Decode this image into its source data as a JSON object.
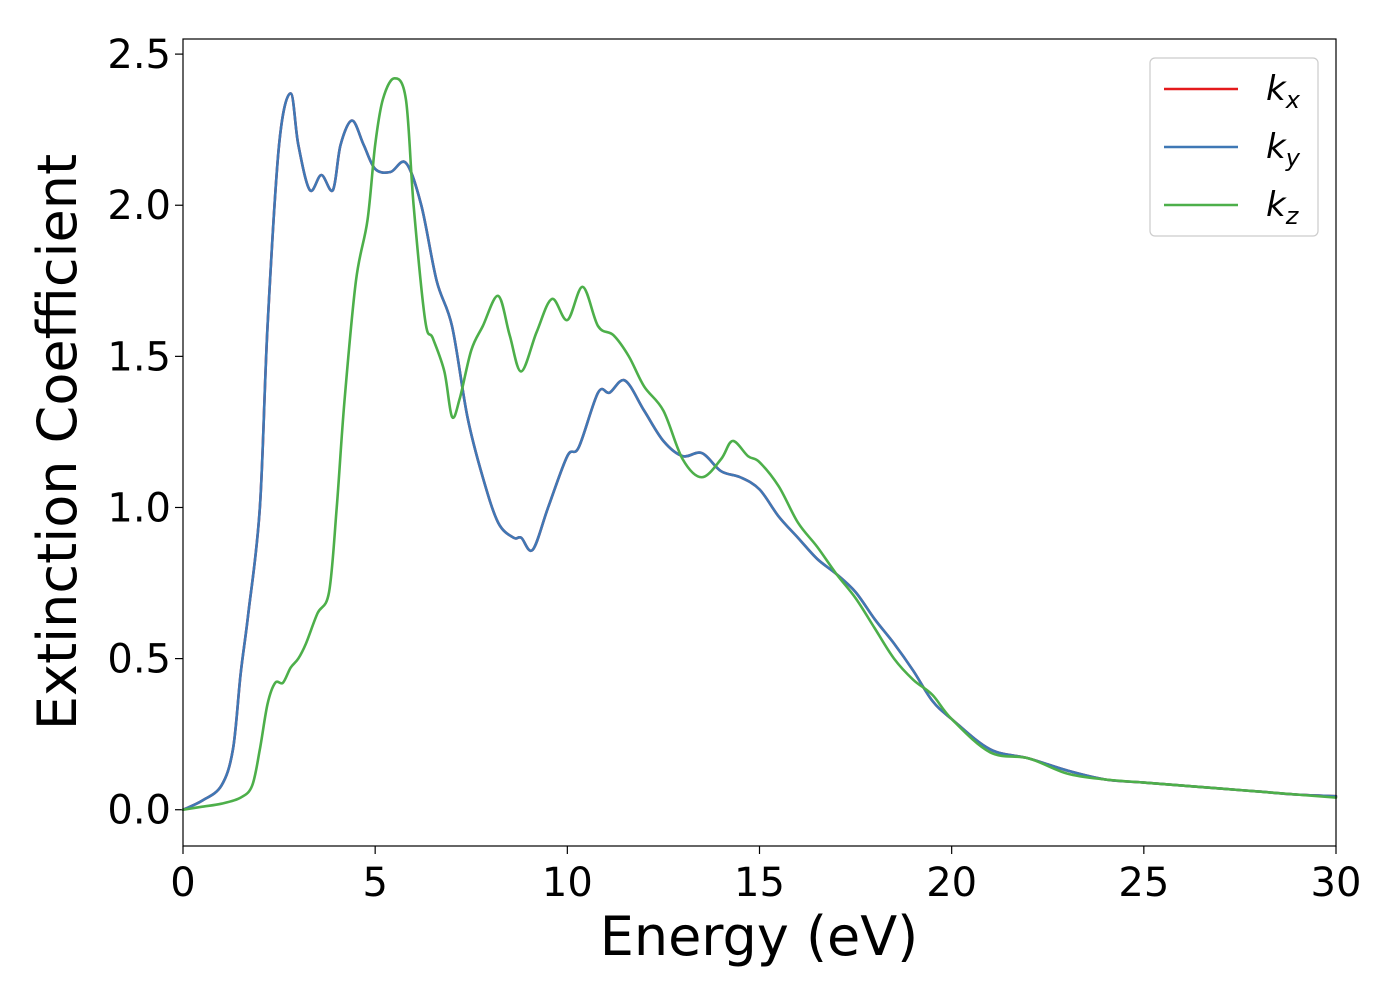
{
  "chart_data": {
    "type": "line",
    "title": "",
    "xlabel": "Energy (eV)",
    "ylabel": "Extinction Coefficient",
    "xlim": [
      0,
      30
    ],
    "ylim": [
      -0.12,
      2.55
    ],
    "xticks": [
      0,
      5,
      10,
      15,
      20,
      25,
      30
    ],
    "xtick_labels": [
      "0",
      "5",
      "10",
      "15",
      "20",
      "25",
      "30"
    ],
    "yticks": [
      0.0,
      0.5,
      1.0,
      1.5,
      2.0,
      2.5
    ],
    "ytick_labels": [
      "0.0",
      "0.5",
      "1.0",
      "1.5",
      "2.0",
      "2.5"
    ],
    "grid": false,
    "legend_position": "top-right",
    "series": [
      {
        "name": "k",
        "subscript": "x",
        "color": "#e41a1c",
        "x": [
          0,
          0.5,
          1,
          1.3,
          1.5,
          1.7,
          2,
          2.2,
          2.5,
          2.8,
          3,
          3.3,
          3.6,
          3.9,
          4.1,
          4.4,
          4.7,
          5,
          5.4,
          5.8,
          6.2,
          6.6,
          7,
          7.4,
          7.8,
          8.2,
          8.6,
          8.8,
          9.1,
          9.5,
          10,
          10.3,
          10.8,
          11.1,
          11.5,
          12,
          12.5,
          13,
          13.5,
          14,
          14.5,
          15,
          15.5,
          16,
          16.5,
          17,
          17.5,
          18,
          18.5,
          19,
          19.5,
          20,
          21,
          22,
          23,
          24,
          25,
          26,
          27,
          28,
          29,
          30
        ],
        "y": [
          0,
          0.03,
          0.08,
          0.2,
          0.45,
          0.65,
          1.0,
          1.6,
          2.2,
          2.37,
          2.2,
          2.05,
          2.1,
          2.05,
          2.2,
          2.28,
          2.2,
          2.12,
          2.11,
          2.14,
          2.0,
          1.75,
          1.6,
          1.3,
          1.1,
          0.95,
          0.9,
          0.9,
          0.86,
          1.0,
          1.17,
          1.2,
          1.38,
          1.38,
          1.42,
          1.32,
          1.22,
          1.17,
          1.18,
          1.12,
          1.1,
          1.06,
          0.97,
          0.9,
          0.83,
          0.78,
          0.72,
          0.63,
          0.55,
          0.46,
          0.36,
          0.3,
          0.2,
          0.17,
          0.13,
          0.1,
          0.09,
          0.08,
          0.07,
          0.06,
          0.05,
          0.045
        ]
      },
      {
        "name": "k",
        "subscript": "y",
        "color": "#3f78b5",
        "x": [
          0,
          0.5,
          1,
          1.3,
          1.5,
          1.7,
          2,
          2.2,
          2.5,
          2.8,
          3,
          3.3,
          3.6,
          3.9,
          4.1,
          4.4,
          4.7,
          5,
          5.4,
          5.8,
          6.2,
          6.6,
          7,
          7.4,
          7.8,
          8.2,
          8.6,
          8.8,
          9.1,
          9.5,
          10,
          10.3,
          10.8,
          11.1,
          11.5,
          12,
          12.5,
          13,
          13.5,
          14,
          14.5,
          15,
          15.5,
          16,
          16.5,
          17,
          17.5,
          18,
          18.5,
          19,
          19.5,
          20,
          21,
          22,
          23,
          24,
          25,
          26,
          27,
          28,
          29,
          30
        ],
        "y": [
          0,
          0.03,
          0.08,
          0.2,
          0.45,
          0.65,
          1.0,
          1.6,
          2.2,
          2.37,
          2.2,
          2.05,
          2.1,
          2.05,
          2.2,
          2.28,
          2.2,
          2.12,
          2.11,
          2.14,
          2.0,
          1.75,
          1.6,
          1.3,
          1.1,
          0.95,
          0.9,
          0.9,
          0.86,
          1.0,
          1.17,
          1.2,
          1.38,
          1.38,
          1.42,
          1.32,
          1.22,
          1.17,
          1.18,
          1.12,
          1.1,
          1.06,
          0.97,
          0.9,
          0.83,
          0.78,
          0.72,
          0.63,
          0.55,
          0.46,
          0.36,
          0.3,
          0.2,
          0.17,
          0.13,
          0.1,
          0.09,
          0.08,
          0.07,
          0.06,
          0.05,
          0.045
        ]
      },
      {
        "name": "k",
        "subscript": "z",
        "color": "#4daf4a",
        "x": [
          0,
          0.5,
          1,
          1.5,
          1.8,
          2,
          2.2,
          2.4,
          2.6,
          2.8,
          3,
          3.2,
          3.5,
          3.8,
          4,
          4.2,
          4.5,
          4.8,
          5,
          5.2,
          5.5,
          5.8,
          6,
          6.3,
          6.5,
          6.8,
          7,
          7.2,
          7.5,
          7.8,
          8.2,
          8.5,
          8.8,
          9.2,
          9.6,
          10,
          10.4,
          10.8,
          11.2,
          11.6,
          12,
          12.5,
          13,
          13.5,
          14,
          14.3,
          14.7,
          15,
          15.5,
          16,
          16.5,
          17,
          17.5,
          18,
          18.5,
          19,
          19.5,
          20,
          21,
          22,
          23,
          24,
          25,
          26,
          27,
          28,
          29,
          30
        ],
        "y": [
          0,
          0.01,
          0.02,
          0.04,
          0.08,
          0.2,
          0.35,
          0.42,
          0.42,
          0.47,
          0.5,
          0.55,
          0.65,
          0.72,
          1.0,
          1.35,
          1.75,
          1.95,
          2.2,
          2.35,
          2.42,
          2.35,
          2.0,
          1.62,
          1.56,
          1.45,
          1.3,
          1.36,
          1.52,
          1.6,
          1.7,
          1.57,
          1.45,
          1.58,
          1.69,
          1.62,
          1.73,
          1.6,
          1.57,
          1.5,
          1.4,
          1.32,
          1.16,
          1.1,
          1.16,
          1.22,
          1.17,
          1.15,
          1.07,
          0.95,
          0.87,
          0.78,
          0.7,
          0.6,
          0.5,
          0.43,
          0.38,
          0.3,
          0.19,
          0.17,
          0.12,
          0.1,
          0.09,
          0.08,
          0.07,
          0.06,
          0.05,
          0.04
        ]
      }
    ]
  }
}
